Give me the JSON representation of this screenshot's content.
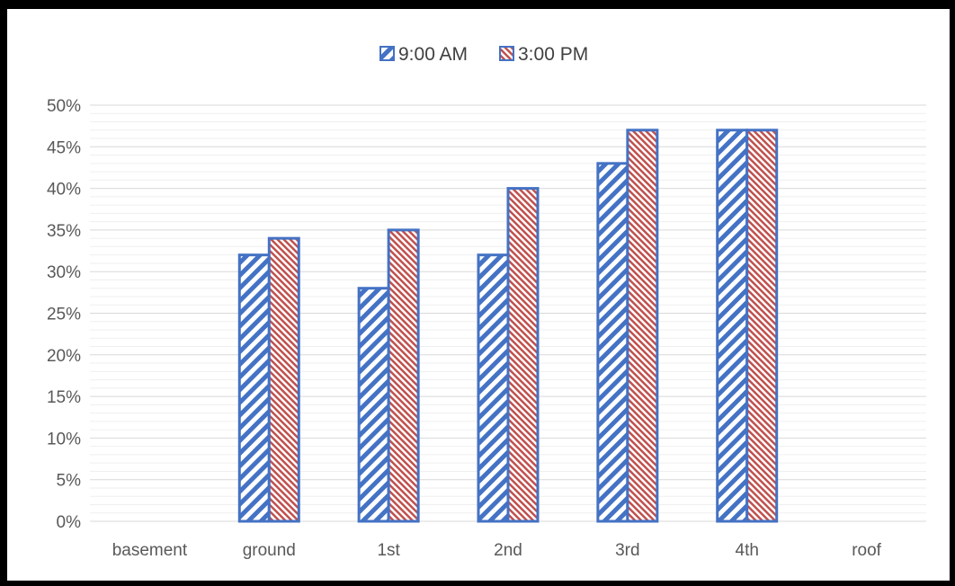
{
  "chart_data": {
    "type": "bar",
    "title": "",
    "xlabel": "",
    "ylabel": "",
    "categories": [
      "basement",
      "ground",
      "1st",
      "2nd",
      "3rd",
      "4th",
      "roof"
    ],
    "series": [
      {
        "name": "9:00 AM",
        "values": [
          null,
          32,
          28,
          32,
          43,
          47,
          null
        ],
        "color": "#4472C4",
        "pattern": "diagonal-stripes"
      },
      {
        "name": "3:00 PM",
        "values": [
          null,
          34,
          35,
          40,
          47,
          47,
          null
        ],
        "color": "#C0504D",
        "pattern": "diagonal-stripes-dense"
      }
    ],
    "ylim": [
      0,
      50
    ],
    "yticks": [
      "0%",
      "5%",
      "10%",
      "15%",
      "20%",
      "25%",
      "30%",
      "35%",
      "40%",
      "45%",
      "50%"
    ],
    "grid": true,
    "legend_position": "top-center"
  }
}
